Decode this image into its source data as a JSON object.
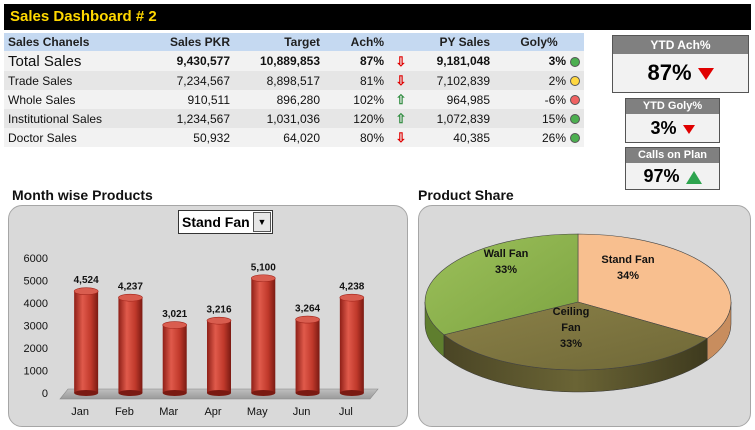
{
  "title": "Sales Dashboard # 2",
  "table": {
    "headers": [
      "Sales Chanels",
      "Sales PKR",
      "Target",
      "Ach%",
      "",
      "PY Sales",
      "Goly%"
    ],
    "rows": [
      {
        "channel": "Total Sales",
        "sales": "9,430,577",
        "target": "10,889,853",
        "ach": "87%",
        "trend": "down",
        "py": "9,181,048",
        "goly": "3%",
        "status": "green"
      },
      {
        "channel": "Trade Sales",
        "sales": "7,234,567",
        "target": "8,898,517",
        "ach": "81%",
        "trend": "down",
        "py": "7,102,839",
        "goly": "2%",
        "status": "yellow"
      },
      {
        "channel": "Whole Sales",
        "sales": "910,511",
        "target": "896,280",
        "ach": "102%",
        "trend": "up",
        "py": "964,985",
        "goly": "-6%",
        "status": "red"
      },
      {
        "channel": "Institutional Sales",
        "sales": "1,234,567",
        "target": "1,031,036",
        "ach": "120%",
        "trend": "up",
        "py": "1,072,839",
        "goly": "15%",
        "status": "green"
      },
      {
        "channel": "Doctor Sales",
        "sales": "50,932",
        "target": "64,020",
        "ach": "80%",
        "trend": "down",
        "py": "40,385",
        "goly": "26%",
        "status": "green"
      }
    ]
  },
  "kpis": {
    "ytd_ach": {
      "label": "YTD Ach%",
      "value": "87%",
      "trend": "down"
    },
    "ytd_goly": {
      "label": "YTD Goly%",
      "value": "3%",
      "trend": "down"
    },
    "calls": {
      "label": "Calls on Plan",
      "value": "97%",
      "trend": "up"
    }
  },
  "month_panel": {
    "title": "Month wise Products",
    "selected_product": "Stand Fan"
  },
  "share_panel": {
    "title": "Product Share"
  },
  "colors": {
    "green": "#4caf50",
    "yellow": "#ffd740",
    "red": "#f06262",
    "down_arrow": "#e00000",
    "up_arrow": "#2e8b3e",
    "bar": "#c0392b",
    "pie_stand": "#f8bf8f",
    "pie_wall": "#8fb050",
    "pie_ceiling": "#8e8553"
  },
  "chart_data": [
    {
      "type": "bar",
      "title": "",
      "categories": [
        "Jan",
        "Feb",
        "Mar",
        "Apr",
        "May",
        "Jun",
        "Jul"
      ],
      "values": [
        4524,
        4237,
        3021,
        3216,
        5100,
        3264,
        4238
      ],
      "value_labels": [
        "4,524",
        "4,237",
        "3,021",
        "3,216",
        "5,100",
        "3,264",
        "4,238"
      ],
      "ylim": [
        0,
        6000
      ],
      "yticks": [
        "0",
        "1000",
        "2000",
        "3000",
        "4000",
        "5000",
        "6000"
      ],
      "grid": false
    },
    {
      "type": "pie",
      "title": "",
      "slices": [
        {
          "label": "Stand Fan",
          "value": 34,
          "pct_label": "34%"
        },
        {
          "label": "Ceiling Fan",
          "value": 33,
          "pct_label": "33%"
        },
        {
          "label": "Wall Fan",
          "value": 33,
          "pct_label": "33%"
        }
      ]
    }
  ]
}
